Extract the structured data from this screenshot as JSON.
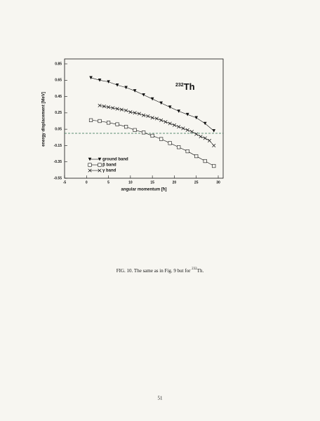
{
  "chart_data": {
    "type": "line",
    "x_label": "angular momentum [ħ]",
    "y_label": "energy displacement [MeV]",
    "annotation": {
      "mass": "232",
      "element": "Th"
    },
    "xlim": [
      -5,
      30
    ],
    "xticks": [
      -5,
      0,
      5,
      10,
      15,
      20,
      25,
      30
    ],
    "ylim": [
      -0.55,
      0.85
    ],
    "yticks": [
      -0.55,
      -0.35,
      -0.15,
      0.05,
      0.25,
      0.45,
      0.65,
      0.85
    ],
    "reference_line": 0,
    "legend": "lower left",
    "series": [
      {
        "name": "ground band",
        "color": "#111111",
        "marker": "triangle",
        "x": [
          1,
          3,
          5,
          7,
          9,
          11,
          13,
          15,
          17,
          19,
          21,
          23,
          25,
          27,
          29
        ],
        "values": [
          0.68,
          0.65,
          0.63,
          0.59,
          0.56,
          0.52,
          0.47,
          0.42,
          0.37,
          0.32,
          0.27,
          0.23,
          0.19,
          0.12,
          0.03
        ]
      },
      {
        "name": "β band",
        "color": "#111111",
        "marker": "square",
        "x": [
          1,
          3,
          5,
          7,
          9,
          11,
          13,
          15,
          17,
          19,
          21,
          23,
          25,
          27,
          29
        ],
        "values": [
          0.16,
          0.15,
          0.13,
          0.11,
          0.08,
          0.04,
          0.01,
          -0.03,
          -0.07,
          -0.12,
          -0.17,
          -0.22,
          -0.28,
          -0.34,
          -0.4
        ]
      },
      {
        "name": "γ band",
        "color": "#111111",
        "marker": "x",
        "x": [
          3,
          4,
          5,
          6,
          7,
          8,
          9,
          10,
          11,
          12,
          13,
          14,
          15,
          16,
          17,
          18,
          19,
          20,
          21,
          22,
          23,
          24,
          25,
          26,
          27,
          28,
          29
        ],
        "values": [
          0.34,
          0.33,
          0.32,
          0.31,
          0.3,
          0.29,
          0.28,
          0.26,
          0.25,
          0.24,
          0.22,
          0.21,
          0.19,
          0.18,
          0.16,
          0.14,
          0.12,
          0.1,
          0.08,
          0.06,
          0.04,
          0.02,
          -0.01,
          -0.04,
          -0.06,
          -0.09,
          -0.15
        ]
      }
    ]
  },
  "caption": {
    "prefix": "FIG. 10. The same as in Fig. 9 but for ",
    "mass": "232",
    "element": "Th."
  },
  "page_number": "51"
}
